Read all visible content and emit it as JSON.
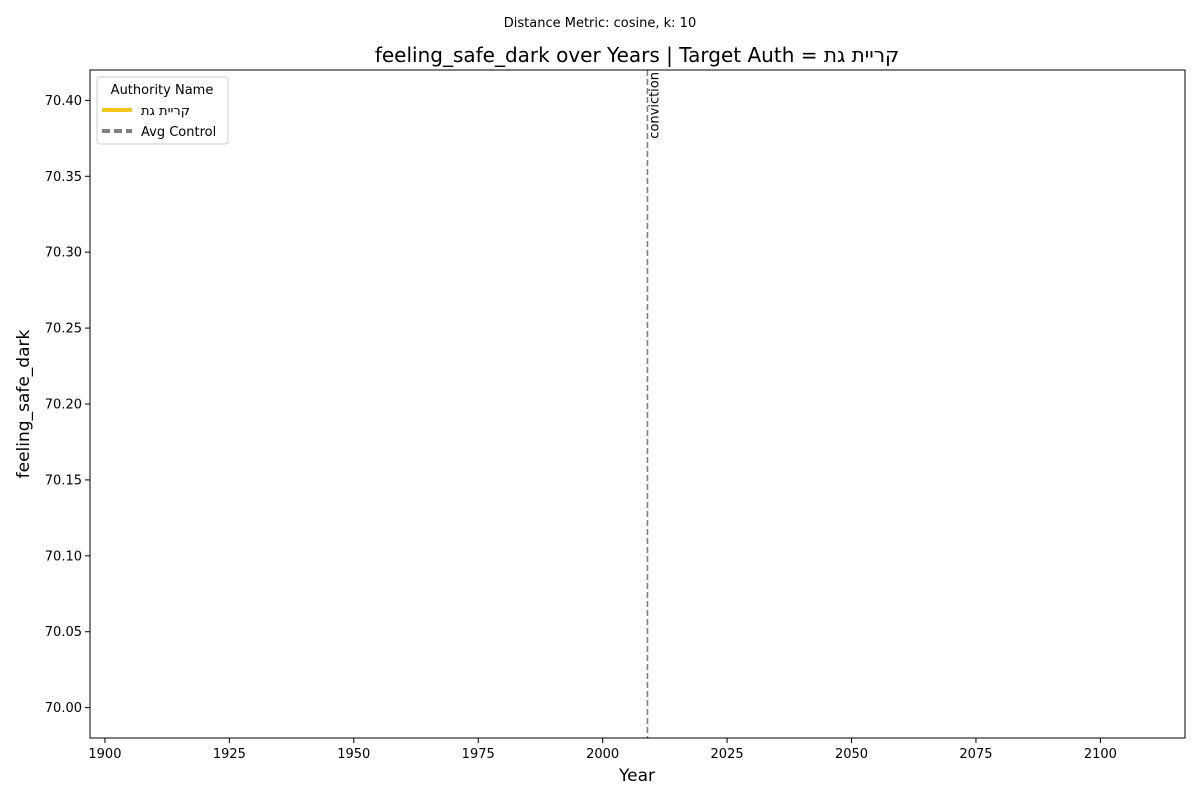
{
  "suptitle": "Distance Metric: cosine, k: 10",
  "chart_data": {
    "type": "line",
    "title": "feeling_safe_dark over Years | Target Auth = קריית גת",
    "xlabel": "Year",
    "ylabel": "feeling_safe_dark",
    "xlim": [
      1897,
      2117
    ],
    "ylim": [
      69.98,
      70.42
    ],
    "x_ticks": [
      1900,
      1925,
      1950,
      1975,
      2000,
      2025,
      2050,
      2075,
      2100
    ],
    "y_ticks": [
      "70.00",
      "70.05",
      "70.10",
      "70.15",
      "70.20",
      "70.25",
      "70.30",
      "70.35",
      "70.40"
    ],
    "series": [
      {
        "name": "קריית גת",
        "color": "#f2c81f",
        "style": "solid",
        "x": [],
        "y": []
      },
      {
        "name": "Avg Control",
        "color": "#808080",
        "style": "dashed",
        "x": [],
        "y": []
      }
    ],
    "vlines": [
      {
        "x": 2009,
        "label": "conviction",
        "color": "#808080",
        "style": "dashed"
      }
    ],
    "legend": {
      "title": "Authority Name",
      "position": "top-left"
    },
    "grid": false
  }
}
